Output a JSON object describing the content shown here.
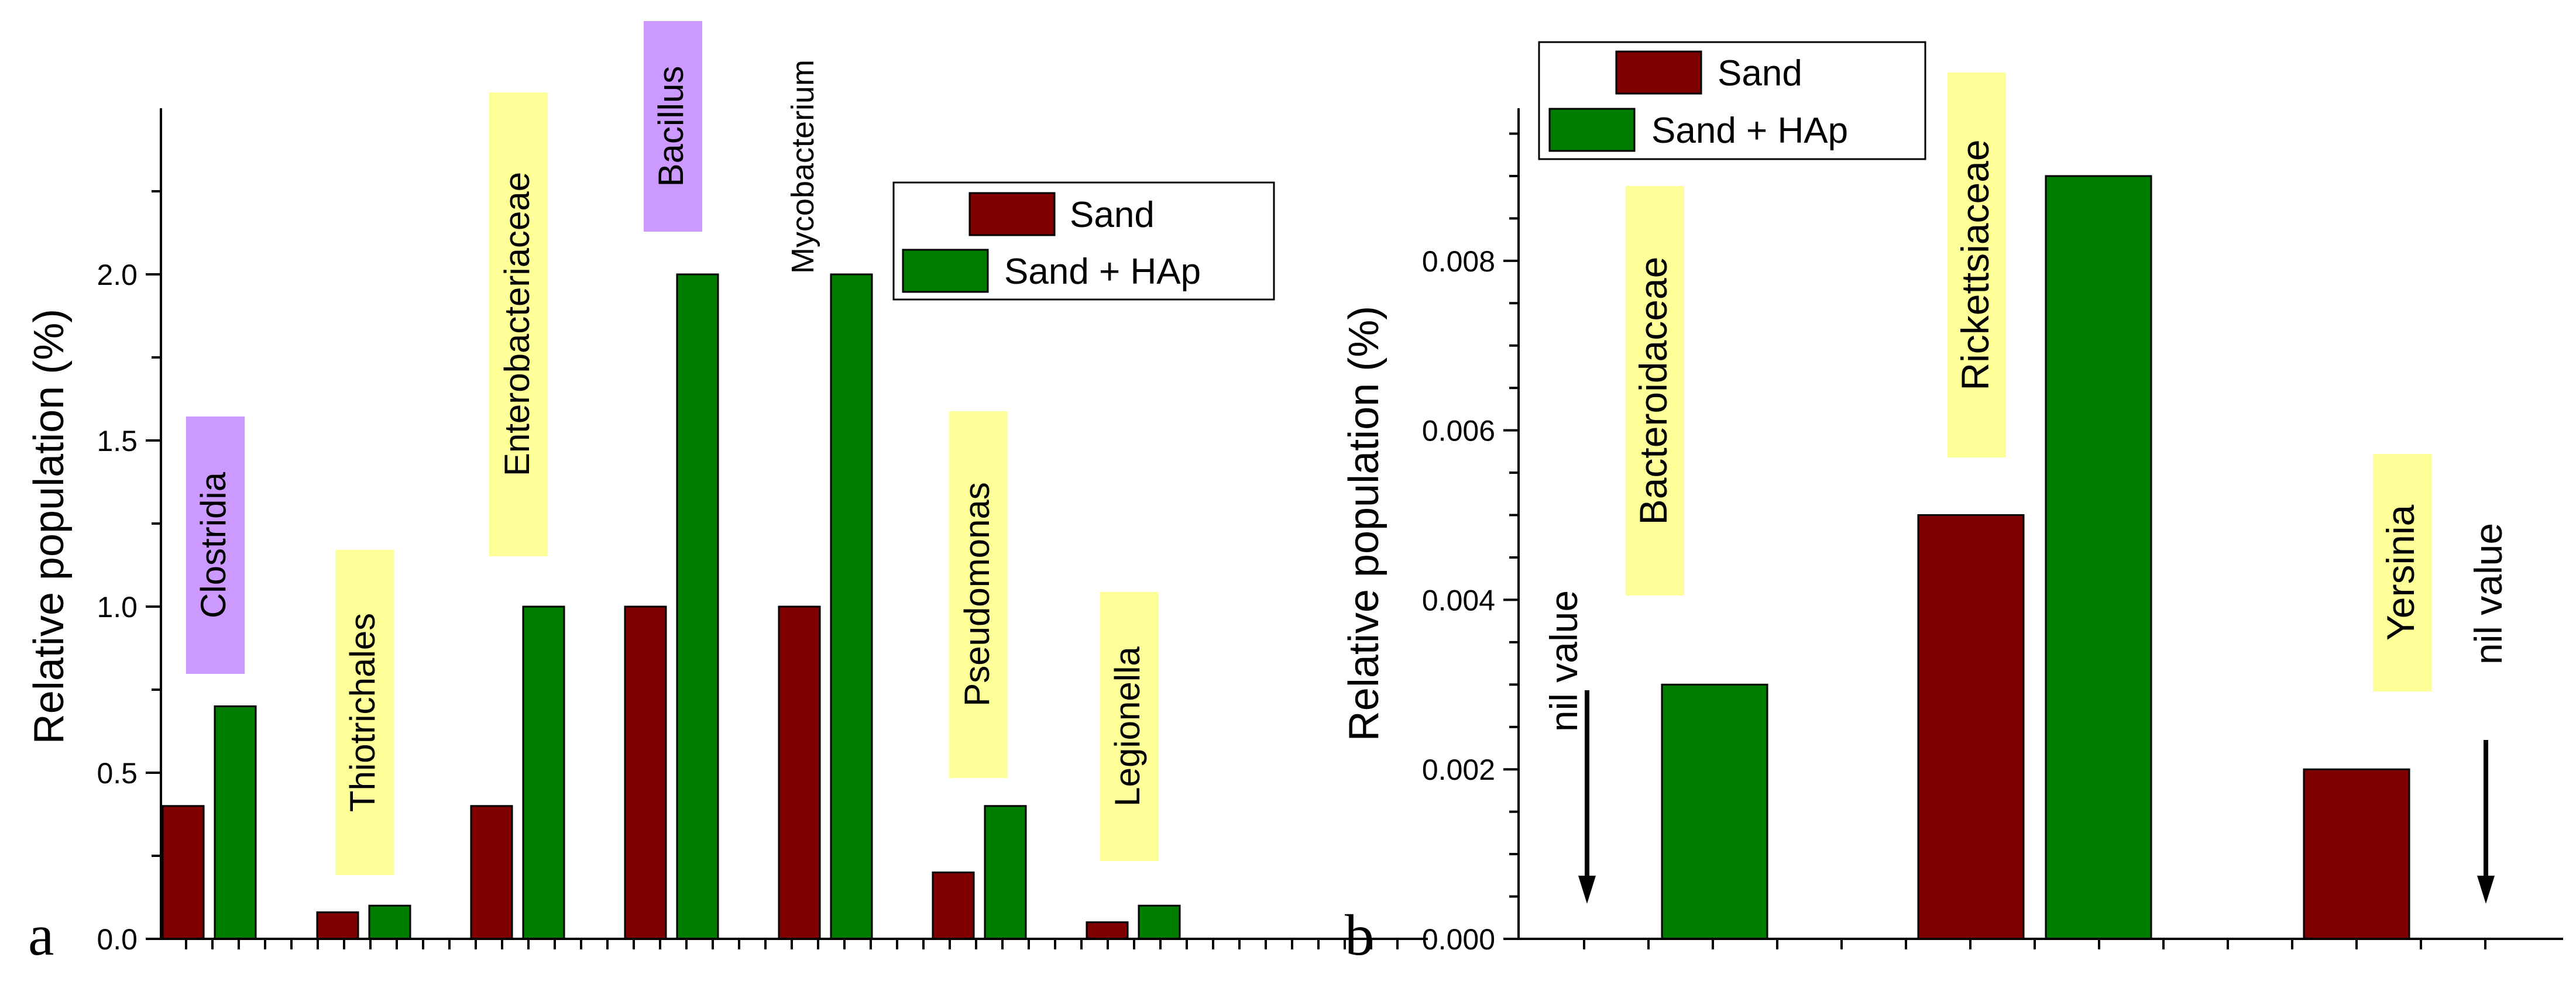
{
  "colors": {
    "sand": "#7f0000",
    "sand_hap": "#007c00",
    "label_yellow": "#ffff99",
    "label_purple": "#cc99ff",
    "axis": "#000000"
  },
  "chart_data": [
    {
      "panel_letter": "a",
      "type": "bar",
      "ylabel": "Relative population (%)",
      "ylim": [
        0,
        2.5
      ],
      "yticks": [
        "0.0",
        "0.5",
        "1.0",
        "1.5",
        "2.0"
      ],
      "legend": {
        "placement": "top-right",
        "entries": [
          "Sand",
          "Sand + HAp"
        ]
      },
      "series": [
        {
          "name": "Sand",
          "values": [
            0.4,
            0.08,
            0.4,
            1.0,
            1.0,
            0.2,
            0.05
          ]
        },
        {
          "name": "Sand + HAp",
          "values": [
            0.7,
            0.1,
            1.0,
            2.0,
            2.0,
            0.4,
            0.1
          ]
        }
      ],
      "categories": [
        {
          "label": "Clostridia",
          "highlight": "purple"
        },
        {
          "label": "Thiotrichales",
          "highlight": "yellow"
        },
        {
          "label": "Enterobacteriaceae",
          "highlight": "yellow"
        },
        {
          "label": "Bacillus",
          "highlight": "purple"
        },
        {
          "label": "Mycobacterium",
          "highlight": "none"
        },
        {
          "label": "Pseudomonas",
          "highlight": "yellow"
        },
        {
          "label": "Legionella",
          "highlight": "yellow"
        }
      ]
    },
    {
      "panel_letter": "b",
      "type": "bar",
      "ylabel": "Relative population (%)",
      "ylim": [
        0,
        0.0098
      ],
      "yticks": [
        "0.000",
        "0.002",
        "0.004",
        "0.006",
        "0.008"
      ],
      "legend": {
        "placement": "top-left",
        "entries": [
          "Sand",
          "Sand + HAp"
        ]
      },
      "series": [
        {
          "name": "Sand",
          "values": [
            0,
            0.005,
            0.002
          ]
        },
        {
          "name": "Sand + HAp",
          "values": [
            0.003,
            0.009,
            0
          ]
        }
      ],
      "categories": [
        {
          "label": "Bacteroidaceae",
          "highlight": "yellow"
        },
        {
          "label": "Rickettsiaceae",
          "highlight": "yellow"
        },
        {
          "label": "Yersinia",
          "highlight": "yellow"
        }
      ],
      "annotations": [
        "nil value",
        "nil value"
      ]
    }
  ]
}
